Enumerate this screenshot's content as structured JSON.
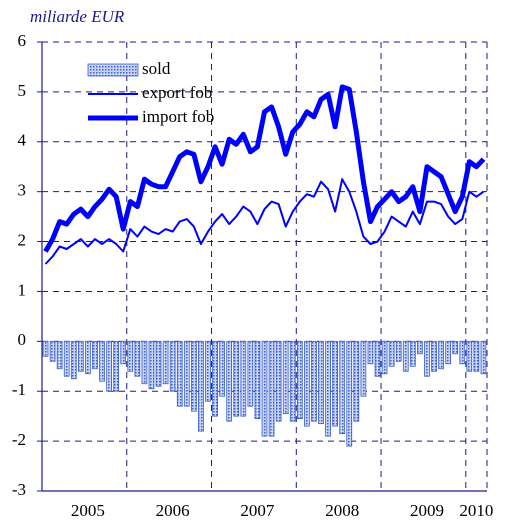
{
  "chart_data": {
    "type": "bar_line",
    "title": "miliarde EUR",
    "categories": [
      null,
      null,
      null,
      null,
      null,
      null,
      "2005",
      null,
      null,
      null,
      null,
      null,
      null,
      null,
      null,
      null,
      null,
      null,
      "2006",
      null,
      null,
      null,
      null,
      null,
      null,
      null,
      null,
      null,
      null,
      null,
      "2007",
      null,
      null,
      null,
      null,
      null,
      null,
      null,
      null,
      null,
      null,
      null,
      "2008",
      null,
      null,
      null,
      null,
      null,
      null,
      null,
      null,
      null,
      null,
      null,
      "2009",
      null,
      null,
      null,
      null,
      null,
      null,
      "2010",
      null
    ],
    "ylim": [
      -3,
      6
    ],
    "yticks": [
      -3,
      -2,
      -1,
      0,
      1,
      2,
      3,
      4,
      5,
      6
    ],
    "grid": true,
    "legend": "upper left",
    "series": [
      {
        "name": "sold",
        "kind": "bar",
        "color": "#3a5fcd",
        "values": [
          -0.3,
          -0.4,
          -0.55,
          -0.7,
          -0.75,
          -0.6,
          -0.65,
          -0.55,
          -0.8,
          -1.0,
          -1.0,
          -0.45,
          -0.6,
          -0.7,
          -0.85,
          -0.95,
          -0.9,
          -0.85,
          -1.0,
          -1.3,
          -1.3,
          -1.4,
          -1.8,
          -1.2,
          -1.5,
          -1.1,
          -1.6,
          -1.5,
          -1.5,
          -1.3,
          -1.55,
          -1.9,
          -1.9,
          -1.6,
          -1.45,
          -1.6,
          -1.55,
          -1.7,
          -1.6,
          -1.65,
          -1.9,
          -1.7,
          -1.85,
          -2.1,
          -1.6,
          -1.1,
          -0.45,
          -0.7,
          -0.65,
          -0.5,
          -0.4,
          -0.6,
          -0.5,
          -0.25,
          -0.7,
          -0.6,
          -0.55,
          -0.45,
          -0.25,
          -0.45,
          -0.6,
          -0.6,
          -0.65
        ]
      },
      {
        "name": "export fob",
        "kind": "line",
        "color": "#0000ff",
        "values": [
          1.55,
          1.7,
          1.9,
          1.85,
          1.95,
          2.05,
          1.9,
          2.05,
          1.95,
          2.05,
          1.95,
          1.8,
          2.25,
          2.1,
          2.3,
          2.2,
          2.15,
          2.25,
          2.2,
          2.4,
          2.45,
          2.3,
          1.95,
          2.2,
          2.4,
          2.55,
          2.35,
          2.5,
          2.7,
          2.6,
          2.35,
          2.65,
          2.8,
          2.75,
          2.3,
          2.6,
          2.8,
          2.95,
          2.9,
          3.2,
          3.05,
          2.6,
          3.25,
          3.0,
          2.6,
          2.1,
          1.95,
          2.0,
          2.2,
          2.5,
          2.4,
          2.3,
          2.6,
          2.35,
          2.8,
          2.8,
          2.75,
          2.5,
          2.35,
          2.45,
          3.0,
          2.9,
          3.0
        ]
      },
      {
        "name": "import fob",
        "kind": "thick-line",
        "color": "#0000ff",
        "values": [
          1.8,
          2.05,
          2.4,
          2.35,
          2.55,
          2.65,
          2.5,
          2.7,
          2.85,
          3.05,
          2.9,
          2.25,
          2.8,
          2.7,
          3.25,
          3.15,
          3.1,
          3.1,
          3.4,
          3.7,
          3.8,
          3.75,
          3.2,
          3.5,
          3.9,
          3.55,
          4.05,
          3.95,
          4.15,
          3.8,
          3.9,
          4.6,
          4.7,
          4.3,
          3.75,
          4.2,
          4.35,
          4.6,
          4.5,
          4.85,
          4.95,
          4.3,
          5.1,
          5.05,
          4.2,
          3.2,
          2.4,
          2.7,
          2.85,
          3.0,
          2.8,
          2.9,
          3.1,
          2.6,
          3.5,
          3.4,
          3.3,
          2.95,
          2.6,
          2.9,
          3.6,
          3.5,
          3.65
        ]
      }
    ]
  }
}
